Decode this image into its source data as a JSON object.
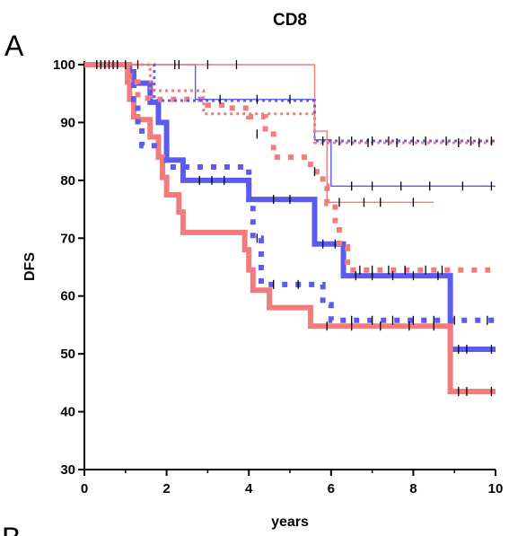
{
  "chart_data": {
    "type": "line",
    "subtype": "kaplan-meier step curves",
    "panel_label": "A",
    "next_panel_label": "B",
    "title": "CD8",
    "xlabel": "years",
    "ylabel": "DFS",
    "xlim": [
      0,
      10
    ],
    "ylim": [
      30,
      100
    ],
    "xticks": [
      0,
      2,
      4,
      6,
      8,
      10
    ],
    "yticks": [
      30,
      40,
      50,
      60,
      70,
      80,
      90,
      100
    ],
    "grid": false,
    "legend": "none",
    "colors": {
      "blue": "#5b5bf0",
      "red": "#f27b7b",
      "censor_tick": "#000000"
    },
    "series": [
      {
        "color": "blue",
        "style": "thick-solid",
        "steps": [
          [
            0,
            100
          ],
          [
            1.0,
            100
          ],
          [
            1.1,
            98
          ],
          [
            1.2,
            96.8
          ],
          [
            1.6,
            93.5
          ],
          [
            1.8,
            90
          ],
          [
            2.0,
            83.5
          ],
          [
            2.4,
            80
          ],
          [
            4.0,
            80
          ],
          [
            4.0,
            76.7
          ],
          [
            5.5,
            76.7
          ],
          [
            5.6,
            69
          ],
          [
            6.3,
            69
          ],
          [
            6.3,
            63.5
          ],
          [
            8.9,
            63.5
          ],
          [
            8.9,
            50.8
          ],
          [
            10,
            50.8
          ]
        ],
        "censored": [
          [
            0.3,
            100
          ],
          [
            0.6,
            100
          ],
          [
            0.8,
            100
          ],
          [
            2.8,
            80
          ],
          [
            3.1,
            80
          ],
          [
            3.4,
            80
          ],
          [
            4.6,
            76.7
          ],
          [
            5.0,
            76.7
          ],
          [
            5.8,
            69
          ],
          [
            6.1,
            69
          ],
          [
            6.6,
            63.5
          ],
          [
            7.0,
            63.5
          ],
          [
            7.5,
            63.5
          ],
          [
            8.0,
            63.5
          ],
          [
            8.6,
            63.5
          ],
          [
            9.1,
            50.8
          ],
          [
            9.3,
            50.8
          ],
          [
            9.9,
            50.8
          ]
        ]
      },
      {
        "color": "red",
        "style": "thick-solid",
        "steps": [
          [
            0,
            100
          ],
          [
            1.0,
            100
          ],
          [
            1.05,
            97
          ],
          [
            1.1,
            94
          ],
          [
            1.2,
            91
          ],
          [
            1.3,
            90.5
          ],
          [
            1.6,
            87.5
          ],
          [
            1.8,
            84
          ],
          [
            1.9,
            80.5
          ],
          [
            2.0,
            77.5
          ],
          [
            2.3,
            74.5
          ],
          [
            2.4,
            71
          ],
          [
            3.9,
            71
          ],
          [
            3.9,
            68
          ],
          [
            4.0,
            64.5
          ],
          [
            4.1,
            61
          ],
          [
            4.5,
            61
          ],
          [
            4.5,
            58
          ],
          [
            5.5,
            58
          ],
          [
            5.5,
            54.8
          ],
          [
            8.9,
            54.8
          ],
          [
            8.9,
            43.5
          ],
          [
            10,
            43.5
          ]
        ],
        "censored": [
          [
            0.3,
            100
          ],
          [
            0.7,
            100
          ],
          [
            5.9,
            54.8
          ],
          [
            6.5,
            54.8
          ],
          [
            7.2,
            54.8
          ],
          [
            7.9,
            54.8
          ],
          [
            8.5,
            54.8
          ],
          [
            9.1,
            43.5
          ],
          [
            9.3,
            43.5
          ],
          [
            9.9,
            43.5
          ]
        ]
      },
      {
        "color": "blue",
        "style": "dotted",
        "steps": [
          [
            0,
            100
          ],
          [
            1.0,
            100
          ],
          [
            1.2,
            94
          ],
          [
            1.3,
            89
          ],
          [
            1.4,
            86
          ],
          [
            1.8,
            86
          ],
          [
            2.0,
            82.3
          ],
          [
            3.2,
            82.3
          ],
          [
            3.9,
            82.3
          ],
          [
            4.0,
            76
          ],
          [
            4.1,
            70
          ],
          [
            4.3,
            62
          ],
          [
            5.6,
            62
          ],
          [
            5.8,
            58.5
          ],
          [
            6.0,
            55.8
          ],
          [
            10,
            55.8
          ]
        ],
        "censored": [
          [
            0.4,
            100
          ],
          [
            0.8,
            100
          ],
          [
            4.2,
            70
          ],
          [
            4.6,
            62
          ],
          [
            5.2,
            62
          ],
          [
            6.5,
            55.8
          ],
          [
            7.0,
            55.8
          ],
          [
            7.5,
            55.8
          ],
          [
            8.0,
            55.8
          ],
          [
            8.5,
            55.8
          ],
          [
            9.0,
            55.8
          ],
          [
            9.8,
            55.8
          ]
        ]
      },
      {
        "color": "red",
        "style": "dotted",
        "steps": [
          [
            0,
            100
          ],
          [
            1.0,
            100
          ],
          [
            1.1,
            97
          ],
          [
            1.3,
            94.2
          ],
          [
            1.6,
            94
          ],
          [
            2.7,
            94
          ],
          [
            3.0,
            93
          ],
          [
            3.5,
            92.5
          ],
          [
            4.0,
            91
          ],
          [
            4.4,
            88
          ],
          [
            4.6,
            84
          ],
          [
            5.2,
            84
          ],
          [
            5.5,
            81.5
          ],
          [
            5.8,
            79
          ],
          [
            5.9,
            76
          ],
          [
            6.1,
            72.5
          ],
          [
            6.2,
            68.5
          ],
          [
            6.4,
            64.5
          ],
          [
            10,
            64.5
          ]
        ],
        "censored": [
          [
            0.5,
            100
          ],
          [
            4.2,
            88
          ],
          [
            5.6,
            81.5
          ],
          [
            6.7,
            64.5
          ],
          [
            7.0,
            64.5
          ],
          [
            7.4,
            64.5
          ],
          [
            7.8,
            64.5
          ],
          [
            8.3,
            64.5
          ],
          [
            8.7,
            64.5
          ]
        ]
      },
      {
        "color": "blue",
        "style": "thin-solid",
        "steps": [
          [
            0,
            100
          ],
          [
            2.7,
            100
          ],
          [
            2.7,
            94
          ],
          [
            5.6,
            94
          ],
          [
            5.6,
            87
          ],
          [
            6.0,
            87
          ],
          [
            6.0,
            79
          ],
          [
            10,
            79
          ]
        ],
        "censored": [
          [
            0.5,
            100
          ],
          [
            1.3,
            100
          ],
          [
            2.2,
            100
          ],
          [
            3.3,
            94
          ],
          [
            4.2,
            94
          ],
          [
            5.0,
            94
          ],
          [
            6.5,
            79
          ],
          [
            7.0,
            79
          ],
          [
            7.7,
            79
          ],
          [
            8.4,
            79
          ],
          [
            9.2,
            79
          ],
          [
            9.9,
            79
          ]
        ]
      },
      {
        "color": "red",
        "style": "thin-solid",
        "steps": [
          [
            0,
            100
          ],
          [
            5.6,
            100
          ],
          [
            5.6,
            88.5
          ],
          [
            5.9,
            88.5
          ],
          [
            5.9,
            76.2
          ],
          [
            8.5,
            76.2
          ]
        ],
        "censored": [
          [
            1.0,
            100
          ],
          [
            2.3,
            100
          ],
          [
            3.0,
            100
          ],
          [
            3.7,
            100
          ],
          [
            6.2,
            76.2
          ],
          [
            6.8,
            76.2
          ],
          [
            7.2,
            76.2
          ],
          [
            8.0,
            76.2
          ]
        ]
      },
      {
        "color": "blue",
        "style": "small-dotted",
        "steps": [
          [
            0,
            100
          ],
          [
            1.7,
            100
          ],
          [
            1.7,
            93.8
          ],
          [
            5.6,
            93.8
          ],
          [
            5.6,
            86.8
          ],
          [
            10,
            86.8
          ]
        ],
        "censored": [
          [
            5.8,
            86.8
          ],
          [
            6.2,
            86.8
          ],
          [
            6.5,
            86.8
          ],
          [
            7.0,
            86.8
          ],
          [
            7.4,
            86.8
          ],
          [
            8.0,
            86.8
          ],
          [
            8.3,
            86.8
          ],
          [
            8.8,
            86.8
          ],
          [
            9.4,
            86.8
          ],
          [
            9.9,
            86.8
          ]
        ]
      },
      {
        "color": "red",
        "style": "small-dotted",
        "steps": [
          [
            0,
            100
          ],
          [
            1.4,
            100
          ],
          [
            1.6,
            95.5
          ],
          [
            2.8,
            95.5
          ],
          [
            2.9,
            91.5
          ],
          [
            5.5,
            91.5
          ],
          [
            5.6,
            86.5
          ],
          [
            10,
            86.5
          ]
        ],
        "censored": [
          [
            6.9,
            86.5
          ],
          [
            7.6,
            86.5
          ],
          [
            9.1,
            86.5
          ],
          [
            9.6,
            86.5
          ]
        ]
      }
    ]
  }
}
